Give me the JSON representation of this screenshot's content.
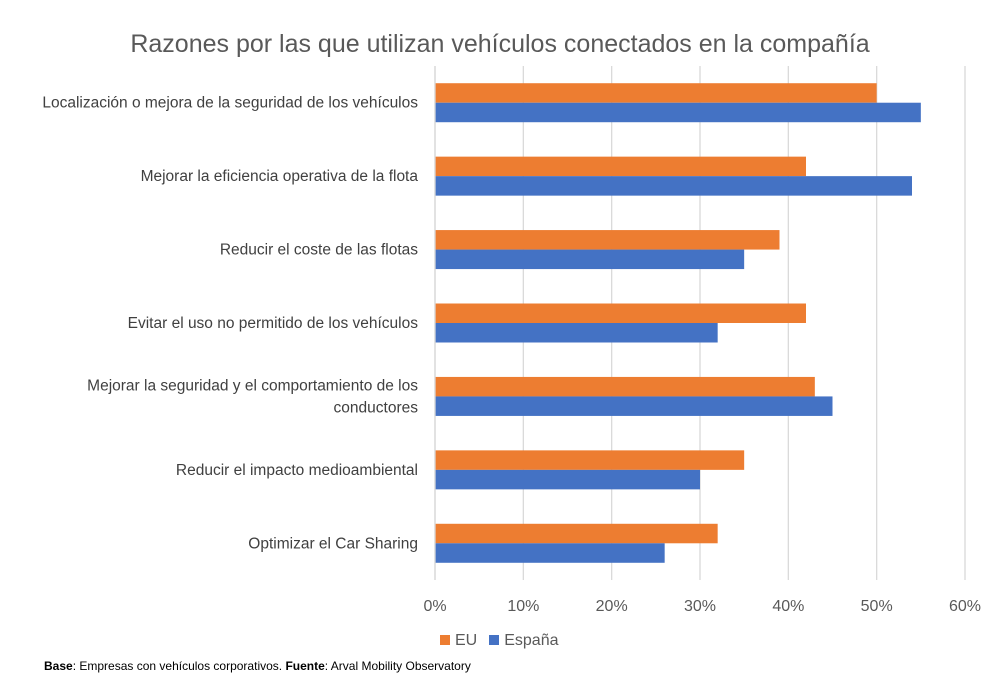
{
  "chart_data": {
    "type": "bar",
    "orientation": "horizontal",
    "title": "Razones por las que utilizan vehículos conectados en la compañía",
    "categories": [
      "Localización o mejora de la seguridad de los vehículos",
      "Mejorar la eficiencia operativa de la flota",
      "Reducir el coste de las flotas",
      "Evitar el uso no permitido de los vehículos",
      "Mejorar la seguridad y el comportamiento de los conductores",
      "Reducir el impacto medioambiental",
      "Optimizar el Car Sharing"
    ],
    "category_lines": [
      [
        "Localización o mejora de la seguridad de los vehículos"
      ],
      [
        "Mejorar la eficiencia operativa de la flota"
      ],
      [
        "Reducir el coste de las flotas"
      ],
      [
        "Evitar el uso no permitido de los vehículos"
      ],
      [
        "Mejorar la seguridad y el comportamiento de los",
        "conductores"
      ],
      [
        "Reducir el impacto medioambiental"
      ],
      [
        "Optimizar el Car Sharing"
      ]
    ],
    "series": [
      {
        "name": "EU",
        "color": "#ED7D31",
        "values": [
          50,
          42,
          39,
          42,
          43,
          35,
          32
        ]
      },
      {
        "name": "España",
        "color": "#4472C4",
        "values": [
          55,
          54,
          35,
          32,
          45,
          30,
          26
        ]
      }
    ],
    "xlim": [
      0,
      60
    ],
    "xticks": [
      "0%",
      "10%",
      "20%",
      "30%",
      "40%",
      "50%",
      "60%"
    ],
    "xlabel": "",
    "ylabel": "",
    "grid": "vertical",
    "legend": "bottom"
  },
  "footer": {
    "base_label": "Base",
    "base_text": ": Empresas con vehículos corporativos. ",
    "source_label": "Fuente",
    "source_text": ": Arval Mobility Observatory"
  }
}
